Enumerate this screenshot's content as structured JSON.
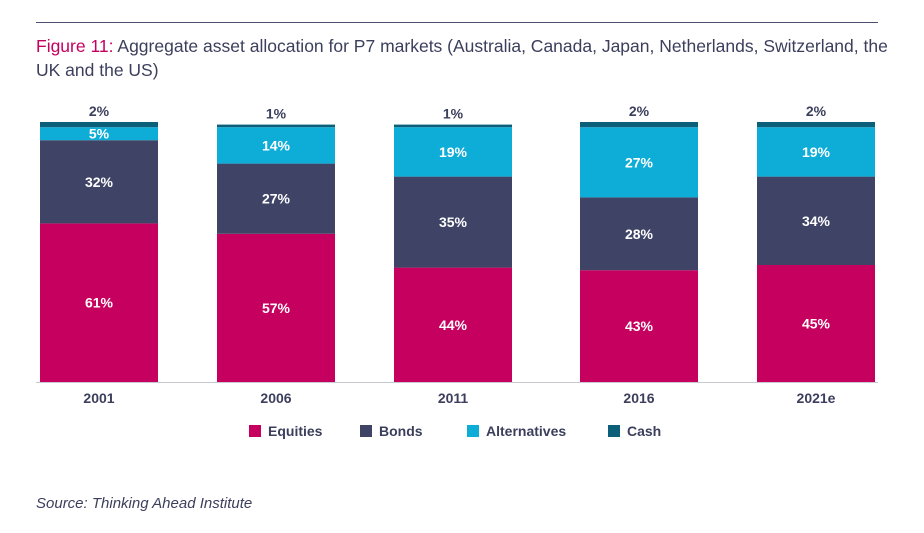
{
  "title": {
    "figure_label": "Figure 11:",
    "text": "Aggregate asset allocation for P7 markets (Australia, Canada, Japan, Netherlands, Switzerland, the UK and the US)"
  },
  "source": "Source: Thinking Ahead Institute",
  "chart_data": {
    "type": "bar",
    "stacked": true,
    "categories": [
      "2001",
      "2006",
      "2011",
      "2016",
      "2021e"
    ],
    "ylim": [
      0,
      100
    ],
    "grid": false,
    "legend_position": "bottom-center",
    "series": [
      {
        "name": "Equities",
        "color": "#c5005e",
        "values": [
          61,
          57,
          44,
          43,
          45
        ],
        "labels": [
          "61%",
          "57%",
          "44%",
          "43%",
          "45%"
        ]
      },
      {
        "name": "Bonds",
        "color": "#3f4466",
        "values": [
          32,
          27,
          35,
          28,
          34
        ],
        "labels": [
          "32%",
          "27%",
          "35%",
          "28%",
          "34%"
        ]
      },
      {
        "name": "Alternatives",
        "color": "#0eadd8",
        "values": [
          5,
          14,
          19,
          27,
          19
        ],
        "labels": [
          "5%",
          "14%",
          "19%",
          "27%",
          "19%"
        ]
      },
      {
        "name": "Cash",
        "color": "#0b5f78",
        "values": [
          2,
          1,
          1,
          2,
          2
        ],
        "labels": [
          "2%",
          "1%",
          "1%",
          "2%",
          "2%"
        ]
      }
    ]
  }
}
